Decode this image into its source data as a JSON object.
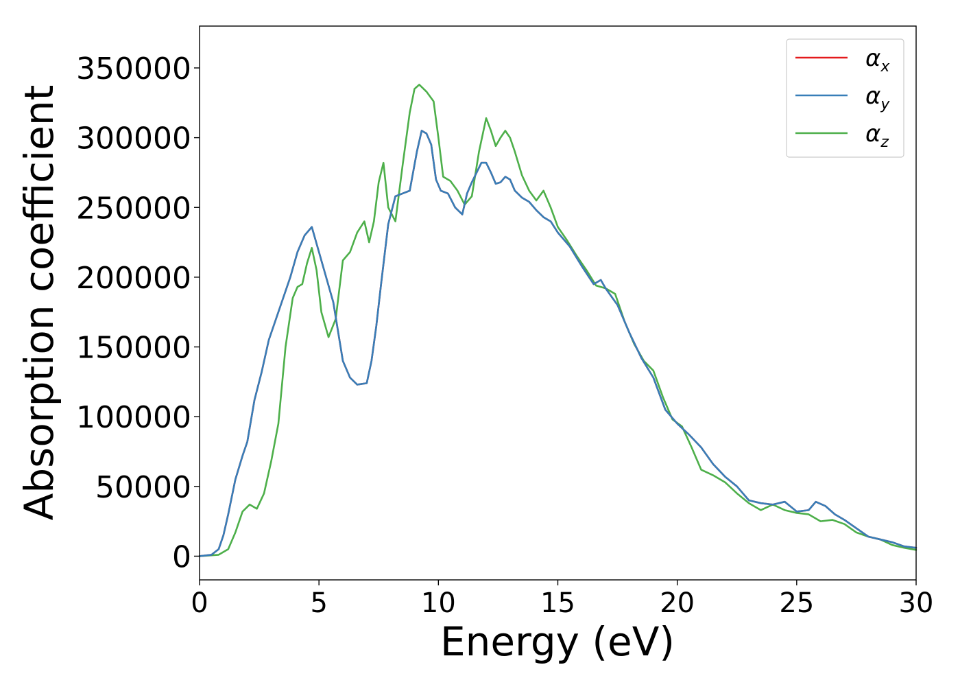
{
  "chart_data": {
    "type": "line",
    "title": "",
    "xlabel": "Energy (eV)",
    "ylabel": "Absorption coefficient",
    "xlim": [
      0,
      30
    ],
    "ylim": [
      -17000,
      380000
    ],
    "xticks": [
      0,
      5,
      10,
      15,
      20,
      25,
      30
    ],
    "yticks": [
      0,
      50000,
      100000,
      150000,
      200000,
      250000,
      300000,
      350000
    ],
    "grid": false,
    "legend_placement": "top-right",
    "series": [
      {
        "name": "α_x",
        "label_base": "α",
        "label_sub": "x",
        "color": "#e41a1c",
        "x": [
          0,
          0.5,
          0.8,
          1.0,
          1.2,
          1.5,
          1.8,
          2.0,
          2.3,
          2.6,
          2.9,
          3.2,
          3.5,
          3.8,
          4.1,
          4.4,
          4.7,
          5.0,
          5.2,
          5.6,
          6.0,
          6.3,
          6.6,
          7.0,
          7.2,
          7.4,
          7.6,
          7.9,
          8.2,
          8.5,
          8.8,
          9.1,
          9.3,
          9.5,
          9.7,
          9.9,
          10.1,
          10.4,
          10.7,
          11.0,
          11.2,
          11.4,
          11.6,
          11.8,
          12.0,
          12.2,
          12.4,
          12.6,
          12.8,
          13.0,
          13.2,
          13.5,
          13.8,
          14.1,
          14.4,
          14.7,
          15.0,
          15.5,
          16.0,
          16.5,
          16.8,
          17.0,
          17.5,
          18.0,
          18.5,
          19.0,
          19.5,
          20.0,
          20.5,
          21.0,
          21.5,
          22.0,
          22.5,
          23.0,
          23.5,
          24.0,
          24.5,
          25.0,
          25.5,
          25.8,
          26.2,
          26.6,
          27.0,
          27.5,
          28.0,
          28.5,
          29.0,
          29.5,
          30.0
        ],
        "y": [
          0,
          1000,
          5000,
          15000,
          30000,
          55000,
          72000,
          82000,
          112000,
          132000,
          155000,
          170000,
          185000,
          200000,
          218000,
          230000,
          236000,
          218000,
          206000,
          182000,
          140000,
          128000,
          123000,
          124000,
          140000,
          165000,
          195000,
          238000,
          258000,
          260000,
          262000,
          290000,
          305000,
          303000,
          295000,
          270000,
          262000,
          260000,
          250000,
          245000,
          260000,
          268000,
          275000,
          282000,
          282000,
          275000,
          267000,
          268000,
          272000,
          270000,
          262000,
          257000,
          254000,
          248000,
          243000,
          240000,
          232000,
          222000,
          208000,
          195000,
          198000,
          192000,
          180000,
          160000,
          142000,
          128000,
          105000,
          95000,
          87000,
          78000,
          66000,
          57000,
          50000,
          40000,
          38000,
          37000,
          39000,
          32000,
          33000,
          39000,
          36000,
          30000,
          26000,
          20000,
          14000,
          12000,
          10000,
          7000,
          6000
        ]
      },
      {
        "name": "α_y",
        "label_base": "α",
        "label_sub": "y",
        "color": "#377eb8",
        "x": [
          0,
          0.5,
          0.8,
          1.0,
          1.2,
          1.5,
          1.8,
          2.0,
          2.3,
          2.6,
          2.9,
          3.2,
          3.5,
          3.8,
          4.1,
          4.4,
          4.7,
          5.0,
          5.2,
          5.6,
          6.0,
          6.3,
          6.6,
          7.0,
          7.2,
          7.4,
          7.6,
          7.9,
          8.2,
          8.5,
          8.8,
          9.1,
          9.3,
          9.5,
          9.7,
          9.9,
          10.1,
          10.4,
          10.7,
          11.0,
          11.2,
          11.4,
          11.6,
          11.8,
          12.0,
          12.2,
          12.4,
          12.6,
          12.8,
          13.0,
          13.2,
          13.5,
          13.8,
          14.1,
          14.4,
          14.7,
          15.0,
          15.5,
          16.0,
          16.5,
          16.8,
          17.0,
          17.5,
          18.0,
          18.5,
          19.0,
          19.5,
          20.0,
          20.5,
          21.0,
          21.5,
          22.0,
          22.5,
          23.0,
          23.5,
          24.0,
          24.5,
          25.0,
          25.5,
          25.8,
          26.2,
          26.6,
          27.0,
          27.5,
          28.0,
          28.5,
          29.0,
          29.5,
          30.0
        ],
        "y": [
          0,
          1000,
          5000,
          15000,
          30000,
          55000,
          72000,
          82000,
          112000,
          132000,
          155000,
          170000,
          185000,
          200000,
          218000,
          230000,
          236000,
          218000,
          206000,
          182000,
          140000,
          128000,
          123000,
          124000,
          140000,
          165000,
          195000,
          238000,
          258000,
          260000,
          262000,
          290000,
          305000,
          303000,
          295000,
          270000,
          262000,
          260000,
          250000,
          245000,
          260000,
          268000,
          275000,
          282000,
          282000,
          275000,
          267000,
          268000,
          272000,
          270000,
          262000,
          257000,
          254000,
          248000,
          243000,
          240000,
          232000,
          222000,
          208000,
          195000,
          198000,
          192000,
          180000,
          160000,
          142000,
          128000,
          105000,
          95000,
          87000,
          78000,
          66000,
          57000,
          50000,
          40000,
          38000,
          37000,
          39000,
          32000,
          33000,
          39000,
          36000,
          30000,
          26000,
          20000,
          14000,
          12000,
          10000,
          7000,
          6000
        ]
      },
      {
        "name": "α_z",
        "label_base": "α",
        "label_sub": "z",
        "color": "#4daf4a",
        "x": [
          0,
          0.8,
          1.2,
          1.5,
          1.8,
          2.1,
          2.4,
          2.7,
          3.0,
          3.3,
          3.6,
          3.9,
          4.1,
          4.3,
          4.5,
          4.7,
          4.9,
          5.1,
          5.4,
          5.7,
          6.0,
          6.3,
          6.6,
          6.9,
          7.1,
          7.3,
          7.5,
          7.7,
          7.9,
          8.2,
          8.5,
          8.8,
          9.0,
          9.2,
          9.5,
          9.8,
          10.0,
          10.2,
          10.5,
          10.8,
          11.1,
          11.4,
          11.7,
          12.0,
          12.2,
          12.4,
          12.6,
          12.8,
          13.0,
          13.2,
          13.5,
          13.8,
          14.1,
          14.4,
          14.7,
          15.0,
          15.4,
          15.8,
          16.2,
          16.6,
          17.0,
          17.4,
          17.8,
          18.2,
          18.6,
          19.0,
          19.4,
          19.8,
          20.2,
          20.6,
          21.0,
          21.5,
          22.0,
          22.5,
          23.0,
          23.5,
          24.0,
          24.5,
          25.0,
          25.5,
          26.0,
          26.5,
          27.0,
          27.5,
          28.0,
          28.5,
          29.0,
          29.5,
          30.0
        ],
        "y": [
          0,
          1000,
          5000,
          17000,
          32000,
          37000,
          34000,
          45000,
          68000,
          95000,
          150000,
          185000,
          193000,
          195000,
          210000,
          221000,
          205000,
          175000,
          157000,
          170000,
          212000,
          218000,
          232000,
          240000,
          225000,
          240000,
          268000,
          282000,
          250000,
          240000,
          280000,
          318000,
          335000,
          338000,
          333000,
          326000,
          300000,
          272000,
          269000,
          262000,
          252000,
          258000,
          290000,
          314000,
          305000,
          294000,
          300000,
          305000,
          300000,
          290000,
          273000,
          262000,
          255000,
          262000,
          250000,
          236000,
          226000,
          215000,
          205000,
          194000,
          192000,
          188000,
          168000,
          152000,
          140000,
          133000,
          114000,
          98000,
          93000,
          78000,
          62000,
          58000,
          53000,
          45000,
          38000,
          33000,
          37000,
          33000,
          31000,
          30000,
          25000,
          26000,
          23000,
          17000,
          14000,
          12000,
          8000,
          6000,
          4500
        ]
      }
    ]
  }
}
